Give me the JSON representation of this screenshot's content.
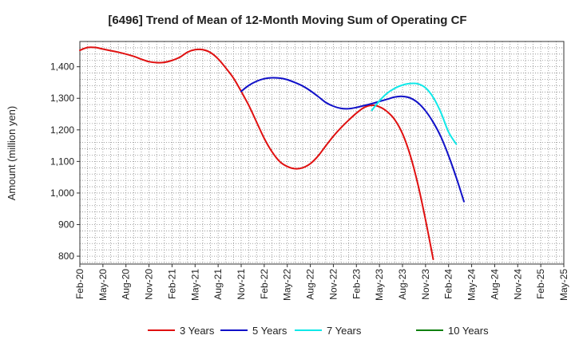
{
  "chart_data": {
    "type": "line",
    "title": "[6496]  Trend of Mean of 12-Month Moving Sum of Operating CF",
    "xlabel": "",
    "ylabel": "Amount (million yen)",
    "ylim": [
      775,
      1480
    ],
    "yticks": [
      800,
      900,
      1000,
      1100,
      1200,
      1300,
      1400
    ],
    "ytick_labels": [
      "800",
      "900",
      "1,000",
      "1,100",
      "1,200",
      "1,300",
      "1,400"
    ],
    "x_categories": [
      "Feb-20",
      "May-20",
      "Aug-20",
      "Nov-20",
      "Feb-21",
      "May-21",
      "Aug-21",
      "Nov-21",
      "Feb-22",
      "May-22",
      "Aug-22",
      "Nov-22",
      "Feb-23",
      "May-23",
      "Aug-23",
      "Nov-23",
      "Feb-24",
      "May-24",
      "Aug-24",
      "Nov-24",
      "Feb-25",
      "May-25"
    ],
    "grid": true,
    "legend_position": "bottom",
    "series": [
      {
        "name": "3 Years",
        "color": "#e01010",
        "start_index": 0,
        "values": [
          1452,
          1461,
          1461,
          1456,
          1451,
          1446,
          1440,
          1433,
          1424,
          1416,
          1413,
          1414,
          1420,
          1430,
          1446,
          1454,
          1454,
          1445,
          1425,
          1396,
          1364,
          1322,
          1277,
          1225,
          1173,
          1131,
          1100,
          1084,
          1077,
          1080,
          1093,
          1117,
          1149,
          1180,
          1207,
          1231,
          1253,
          1271,
          1278,
          1273,
          1258,
          1232,
          1188,
          1120,
          1028,
          915,
          790
        ]
      },
      {
        "name": "5 Years",
        "color": "#1010c8",
        "start_index": 21,
        "values": [
          1322,
          1341,
          1354,
          1362,
          1365,
          1364,
          1359,
          1350,
          1339,
          1324,
          1306,
          1287,
          1275,
          1268,
          1267,
          1271,
          1277,
          1283,
          1290,
          1297,
          1304,
          1306,
          1301,
          1286,
          1260,
          1224,
          1178,
          1118,
          1049,
          973
        ]
      },
      {
        "name": "7 Years",
        "color": "#10e8e8",
        "start_index": 38,
        "values": [
          1262,
          1292,
          1316,
          1332,
          1342,
          1347,
          1346,
          1333,
          1303,
          1255,
          1193,
          1155
        ]
      },
      {
        "name": "10 Years",
        "color": "#108010",
        "start_index": 0,
        "values": []
      }
    ]
  }
}
